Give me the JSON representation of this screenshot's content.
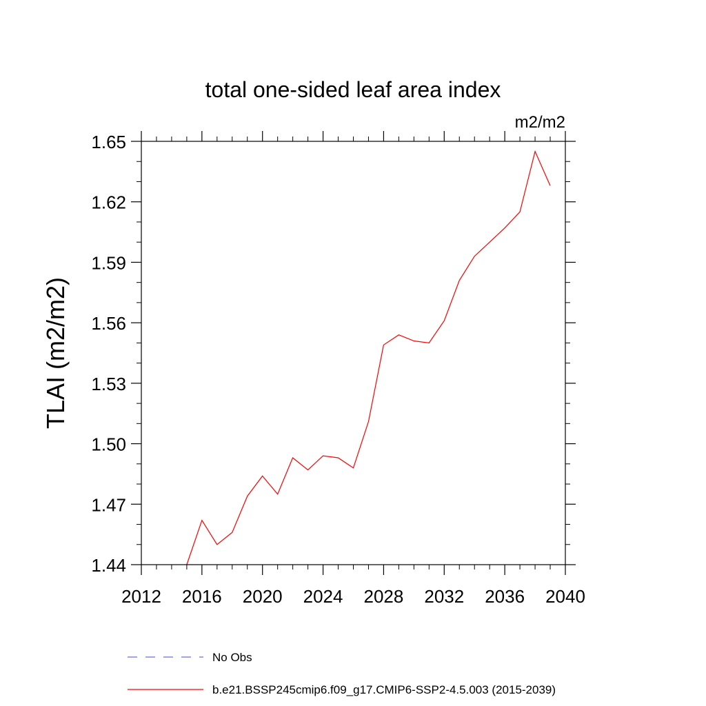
{
  "chart_data": {
    "type": "line",
    "title": "total one-sided leaf area index",
    "units": "m2/m2",
    "xlabel": "",
    "ylabel": "TLAI  (m2/m2)",
    "xlim": [
      2012,
      2040
    ],
    "ylim": [
      1.44,
      1.65
    ],
    "xticks": [
      2012,
      2016,
      2020,
      2024,
      2028,
      2032,
      2036,
      2040
    ],
    "yticks": [
      1.44,
      1.47,
      1.5,
      1.53,
      1.56,
      1.59,
      1.62,
      1.65
    ],
    "ytick_labels": [
      "1.44",
      "1.47",
      "1.50",
      "1.53",
      "1.56",
      "1.59",
      "1.62",
      "1.65"
    ],
    "legend_position": "bottom",
    "series": [
      {
        "name": "b.e21.BSSP245cmip6.f09_g17.CMIP6-SSP2-4.5.003 (2015-2039)",
        "color": "#ff0000",
        "style": "solid",
        "x": [
          2015,
          2016,
          2017,
          2018,
          2019,
          2020,
          2021,
          2022,
          2023,
          2024,
          2025,
          2026,
          2027,
          2028,
          2029,
          2030,
          2031,
          2032,
          2033,
          2034,
          2035,
          2036,
          2037,
          2038,
          2039
        ],
        "y": [
          1.44,
          1.462,
          1.45,
          1.456,
          1.474,
          1.484,
          1.475,
          1.493,
          1.487,
          1.494,
          1.493,
          1.488,
          1.511,
          1.549,
          1.554,
          1.551,
          1.55,
          1.561,
          1.581,
          1.593,
          1.6,
          1.607,
          1.615,
          1.645,
          1.628
        ]
      }
    ],
    "legend": [
      {
        "label": "No Obs",
        "color": "#6a6ae0",
        "style": "dashed"
      },
      {
        "label": "b.e21.BSSP245cmip6.f09_g17.CMIP6-SSP2-4.5.003 (2015-2039)",
        "color": "#ff0000",
        "style": "solid"
      }
    ]
  }
}
